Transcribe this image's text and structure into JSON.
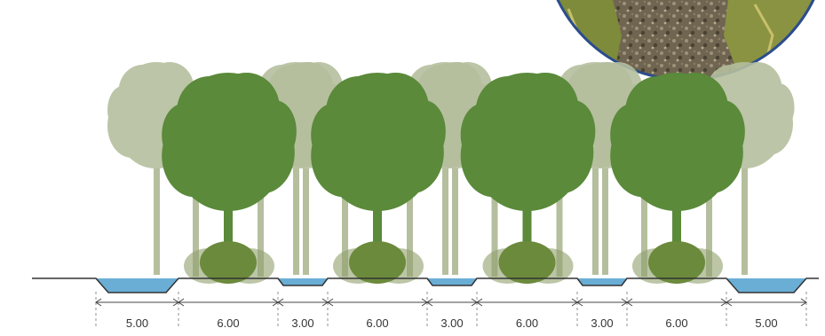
{
  "colors": {
    "tree_dark": "#5a8a3a",
    "tree_light": "#b5bf9e",
    "tree_mid": "#8fa06c",
    "shrub": "#6b8a3c",
    "water": "#6aaed6",
    "ground_line": "#333333",
    "photo_border": "#2b4c8c",
    "photo_fill": "#5a5038"
  },
  "sections": [
    {
      "label": "5.00",
      "type": "swale"
    },
    {
      "label": "6.00",
      "type": "tree-strip"
    },
    {
      "label": "3.00",
      "type": "channel"
    },
    {
      "label": "6.00",
      "type": "tree-strip"
    },
    {
      "label": "3.00",
      "type": "channel"
    },
    {
      "label": "6.00",
      "type": "tree-strip"
    },
    {
      "label": "3.00",
      "type": "channel"
    },
    {
      "label": "6.00",
      "type": "tree-strip"
    },
    {
      "label": "5.00",
      "type": "swale"
    }
  ],
  "photo_inset": {
    "icon": "gravel-ground-photo"
  }
}
